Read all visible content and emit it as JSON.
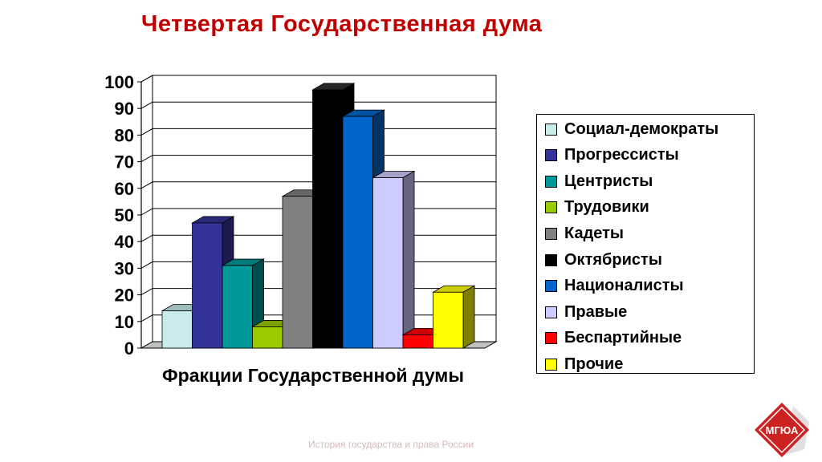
{
  "title": "Четвертая Государственная дума",
  "footer": "История государства и права России",
  "logo_text": "МГЮА",
  "chart_data": {
    "type": "bar",
    "xlabel": "Фракции Государственной думы",
    "ylabel": "",
    "ylim": [
      0,
      100
    ],
    "yticks": [
      0,
      10,
      20,
      30,
      40,
      50,
      60,
      70,
      80,
      90,
      100
    ],
    "grid": true,
    "legend_position": "right",
    "series": [
      {
        "name": "Социал-демократы",
        "value": 14,
        "color": "#c8ecec"
      },
      {
        "name": "Прогрессисты",
        "value": 47,
        "color": "#333399"
      },
      {
        "name": "Центристы",
        "value": 31,
        "color": "#009999"
      },
      {
        "name": "Трудовики",
        "value": 8,
        "color": "#99cc00"
      },
      {
        "name": "Кадеты",
        "value": 57,
        "color": "#808080"
      },
      {
        "name": "Октябристы",
        "value": 97,
        "color": "#000000"
      },
      {
        "name": "Националисты",
        "value": 87,
        "color": "#0066cc"
      },
      {
        "name": "Правые",
        "value": 64,
        "color": "#ccccff"
      },
      {
        "name": "Беспартийные",
        "value": 5,
        "color": "#ff0000"
      },
      {
        "name": "Прочие",
        "value": 21,
        "color": "#ffff00"
      }
    ]
  }
}
